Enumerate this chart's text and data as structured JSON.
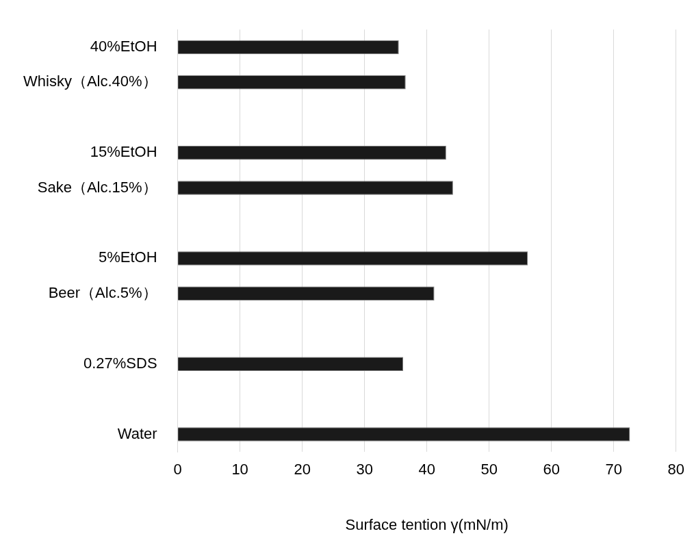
{
  "chart_data": {
    "type": "bar",
    "orientation": "horizontal",
    "xlabel": "Surface tention γ(mN/m)",
    "categories": [
      "40%EtOH",
      "Whisky（Alc.40%）",
      null,
      "15%EtOH",
      "Sake（Alc.15%）",
      null,
      "5%EtOH",
      "Beer（Alc.5%）",
      null,
      "0.27%SDS",
      null,
      "Water"
    ],
    "values": [
      35.5,
      36.6,
      null,
      43.1,
      44.2,
      null,
      56.2,
      41.2,
      null,
      36.2,
      null,
      72.6
    ],
    "color": "#1a1a1a",
    "xlim": [
      0,
      80
    ],
    "xticks": [
      0,
      10,
      20,
      30,
      40,
      50,
      60,
      70,
      80
    ],
    "grid": "x",
    "legend": false
  }
}
